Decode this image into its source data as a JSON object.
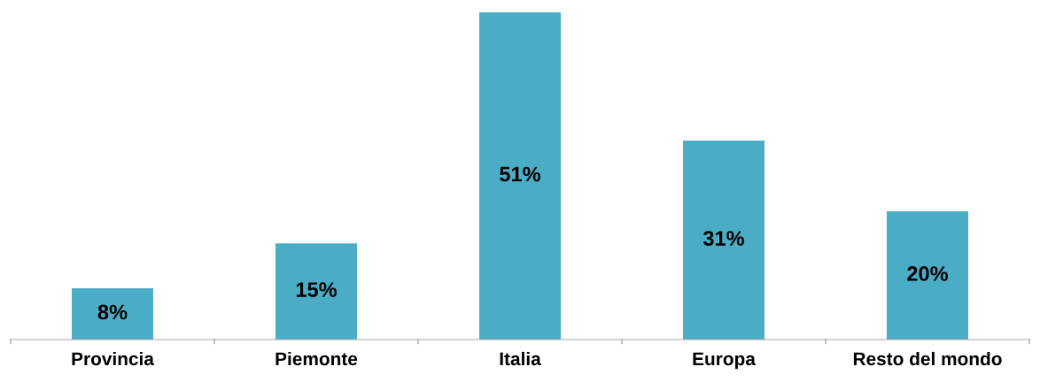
{
  "chart_data": {
    "type": "bar",
    "categories": [
      "Provincia",
      "Piemonte",
      "Italia",
      "Europa",
      "Resto del mondo"
    ],
    "values": [
      8,
      15,
      51,
      31,
      20
    ],
    "color": "#4bacc6",
    "value_labels": [
      "8%",
      "15%",
      "51%",
      "31%",
      "20%"
    ],
    "grid": false,
    "legend": false
  }
}
